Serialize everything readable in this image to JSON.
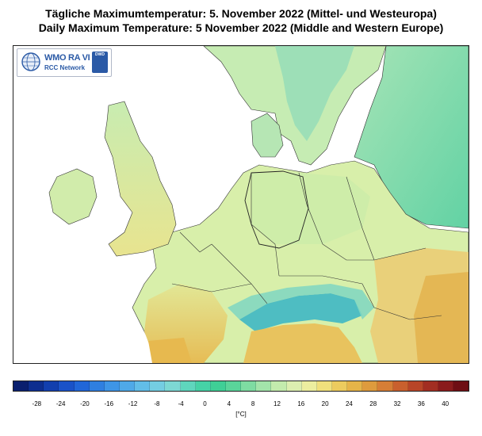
{
  "title_de": "Tägliche Maximumtemperatur:  5. November 2022  (Mittel- und Westeuropa)",
  "title_en": "Daily Maximum Temperature:  5 November 2022  (Middle and Western Europe)",
  "logo": {
    "wmo_text": "WMO RA VI",
    "rcc_text": "RCC Network",
    "dwd_text": "DWD"
  },
  "legend": {
    "unit": "[°C]",
    "tick_labels": [
      "-28",
      "-24",
      "-20",
      "-16",
      "-12",
      "-8",
      "-4",
      "0",
      "4",
      "8",
      "12",
      "16",
      "20",
      "24",
      "28",
      "32",
      "36",
      "40"
    ],
    "colors": [
      "#0a1f6e",
      "#0d2e8f",
      "#123fae",
      "#1a52c8",
      "#2166d8",
      "#2f7fe0",
      "#3e95e6",
      "#4fa9e8",
      "#62bde8",
      "#74cde2",
      "#7dd8d4",
      "#5fd6bd",
      "#46d2a6",
      "#3fcf96",
      "#5ad49a",
      "#7edca2",
      "#a3e4aa",
      "#c3ebad",
      "#dceeb0",
      "#ecee9f",
      "#f0e07c",
      "#eccb5e",
      "#e5b449",
      "#de9b3d",
      "#d67e36",
      "#c9602e",
      "#b84528",
      "#a22e22",
      "#8a1b1c",
      "#6e0e14"
    ]
  },
  "map_colors": {
    "sea": "#ffffff",
    "cool": "#8fe0c6",
    "mild": "#d4f0ad",
    "warm": "#ecdf86",
    "hot": "#e6b84e",
    "alpine": "#3fb8c8"
  }
}
